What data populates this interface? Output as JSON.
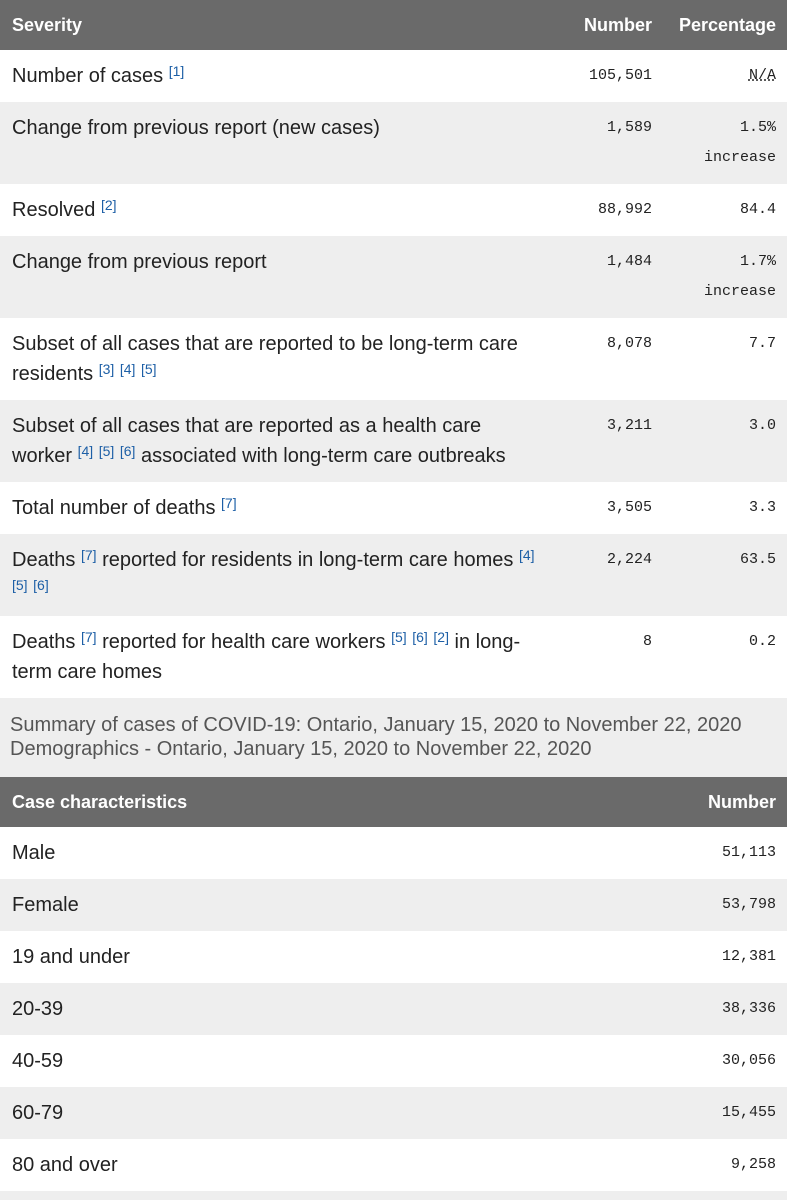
{
  "table1": {
    "header": [
      "Severity",
      "Number",
      "Percentage"
    ],
    "rows": [
      {
        "label": [
          {
            "text": "Number of cases"
          },
          {
            "ref": "[1]"
          }
        ],
        "number": "105,501",
        "percentage": "N/A"
      },
      {
        "label": [
          {
            "text": "Change from previous report (new cases)"
          }
        ],
        "number": "1,589",
        "percentage": "1.5% increase"
      },
      {
        "label": [
          {
            "text": "Resolved"
          },
          {
            "ref": "[2]"
          }
        ],
        "number": "88,992",
        "percentage": "84.4"
      },
      {
        "label": [
          {
            "text": "Change from previous report"
          }
        ],
        "number": "1,484",
        "percentage": "1.7% increase"
      },
      {
        "label": [
          {
            "text": "Subset of all cases that are reported to be long-term care residents"
          },
          {
            "ref": "[3]"
          },
          {
            "ref": "[4]"
          },
          {
            "ref": "[5]"
          }
        ],
        "number": "8,078",
        "percentage": "7.7"
      },
      {
        "label": [
          {
            "text": "Subset of all cases that are reported as a health care worker"
          },
          {
            "ref": "[4]"
          },
          {
            "ref": "[5]"
          },
          {
            "ref": "[6]"
          },
          {
            "text": "associated with long-term care outbreaks"
          }
        ],
        "number": "3,211",
        "percentage": "3.0"
      },
      {
        "label": [
          {
            "text": "Total number of deaths"
          },
          {
            "ref": "[7]"
          }
        ],
        "number": "3,505",
        "percentage": "3.3"
      },
      {
        "label": [
          {
            "text": "Deaths"
          },
          {
            "ref": "[7]"
          },
          {
            "text": "reported for residents in long-term care homes"
          },
          {
            "ref": "[4]"
          },
          {
            "ref": "[5]"
          },
          {
            "ref": "[6]"
          }
        ],
        "number": "2,224",
        "percentage": "63.5"
      },
      {
        "label": [
          {
            "text": "Deaths"
          },
          {
            "ref": "[7]"
          },
          {
            "text": "reported for health care workers"
          },
          {
            "ref": "[5]"
          },
          {
            "ref": "[6]"
          },
          {
            "ref": "[2]"
          },
          {
            "text": "in long-term care homes"
          }
        ],
        "number": "8",
        "percentage": "0.2"
      }
    ]
  },
  "caption": {
    "line1": "Summary of cases of COVID-19: Ontario, January 15, 2020 to November 22, 2020",
    "line2": "Demographics - Ontario, January 15, 2020 to November 22, 2020"
  },
  "table2": {
    "header": [
      "Case characteristics",
      "Number"
    ],
    "rows": [
      {
        "label": "Male",
        "number": "51,113"
      },
      {
        "label": "Female",
        "number": "53,798"
      },
      {
        "label": "19 and under",
        "number": "12,381"
      },
      {
        "label": "20-39",
        "number": "38,336"
      },
      {
        "label": "40-59",
        "number": "30,056"
      },
      {
        "label": "60-79",
        "number": "15,455"
      },
      {
        "label": "80 and over",
        "number": "9,258"
      }
    ]
  }
}
